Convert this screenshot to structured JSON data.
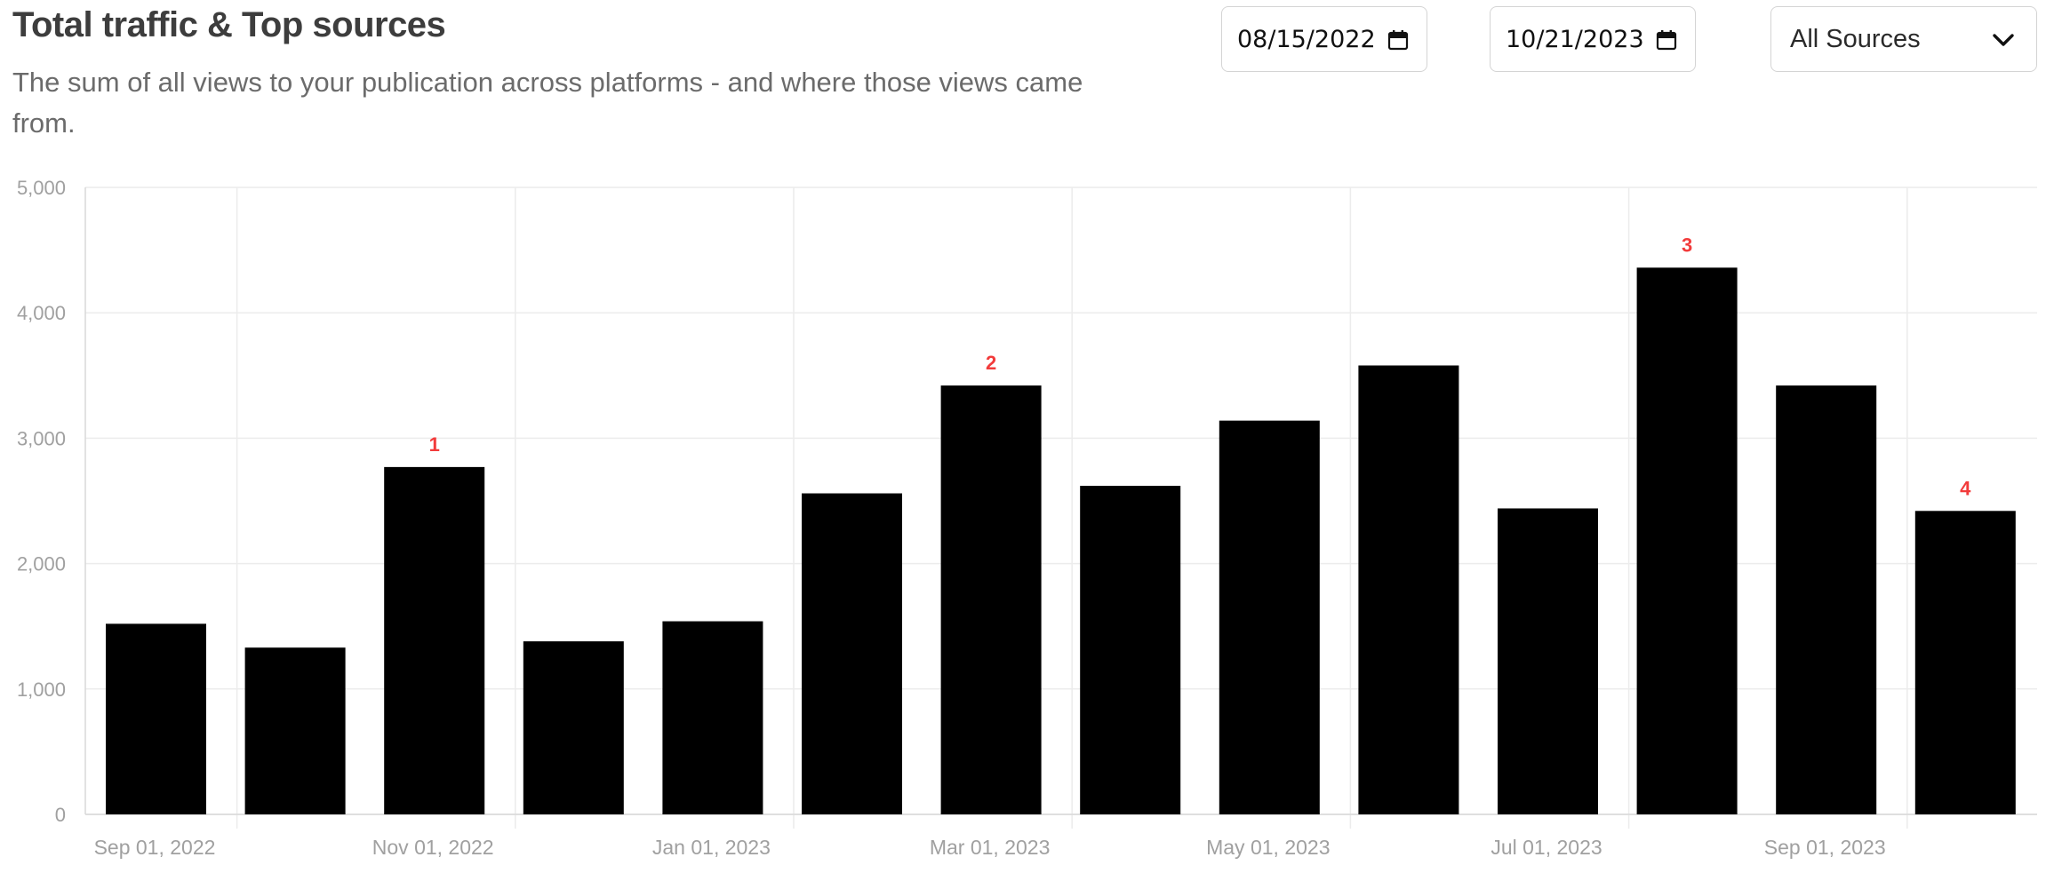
{
  "header": {
    "title": "Total traffic & Top sources",
    "subtitle": "The sum of all views to your publication across platforms - and where those views came from."
  },
  "filters": {
    "date_from": {
      "value": "08/15/2022",
      "icon": "calendar-icon"
    },
    "date_to": {
      "value": "10/21/2023",
      "icon": "calendar-icon"
    },
    "source_select": {
      "selected": "All Sources",
      "icon": "chevron-down-icon"
    }
  },
  "colors": {
    "bar": "#000000",
    "annotation": "#f23b3b",
    "grid": "#ececec",
    "tick_label": "#a0a0a0"
  },
  "chart_data": {
    "type": "bar",
    "title": "",
    "xlabel": "",
    "ylabel": "",
    "ylim": [
      0,
      5000
    ],
    "y_ticks": [
      0,
      1000,
      2000,
      3000,
      4000,
      5000
    ],
    "y_tick_labels": [
      "0",
      "1,000",
      "2,000",
      "3,000",
      "4,000",
      "5,000"
    ],
    "x_tick_labels": [
      "Sep 01, 2022",
      "Nov 01, 2022",
      "Jan 01, 2023",
      "Mar 01, 2023",
      "May 01, 2023",
      "Jul 01, 2023",
      "Sep 01, 2023"
    ],
    "categories": [
      "Sep 2022",
      "Oct 2022",
      "Nov 2022",
      "Dec 2022",
      "Jan 2023",
      "Feb 2023",
      "Mar 2023",
      "Apr 2023",
      "May 2023",
      "Jun 2023",
      "Jul 2023",
      "Aug 2023",
      "Sep 2023",
      "Oct 2023"
    ],
    "values": [
      1520,
      1330,
      2770,
      1380,
      1540,
      2560,
      3420,
      2620,
      3140,
      3580,
      2440,
      4360,
      3420,
      2420
    ],
    "annotations": [
      {
        "category": "Nov 2022",
        "label": "1"
      },
      {
        "category": "Mar 2023",
        "label": "2"
      },
      {
        "category": "Aug 2023",
        "label": "3"
      },
      {
        "category": "Oct 2023",
        "label": "4"
      }
    ],
    "grid": true,
    "legend": "none"
  }
}
